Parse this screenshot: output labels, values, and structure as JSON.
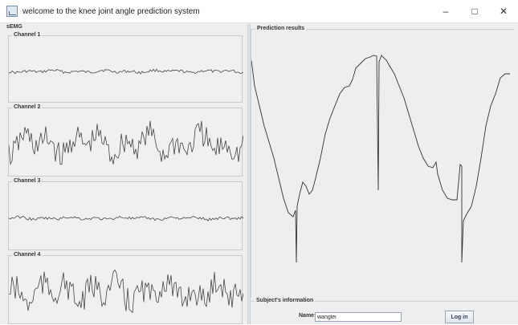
{
  "window": {
    "title": "welcome to the knee joint angle prediction system",
    "controls": {
      "minimize": "–",
      "maximize": "□",
      "close": "✕"
    },
    "icon": "app-icon"
  },
  "semg": {
    "label": "sEMG",
    "channels": [
      {
        "label": "Channel 1",
        "amplitude": "low"
      },
      {
        "label": "Channel 2",
        "amplitude": "high"
      },
      {
        "label": "Channel 3",
        "amplitude": "low"
      },
      {
        "label": "Channel 4",
        "amplitude": "high"
      }
    ]
  },
  "prediction": {
    "label": "Prediction results"
  },
  "subject": {
    "label": "Subject's information",
    "name_label": "Name:",
    "name_value": "wanglei",
    "login_label": "Log in"
  },
  "colors": {
    "background": "#eeeeee",
    "trace": "#333333",
    "border": "#c8c8c8"
  }
}
